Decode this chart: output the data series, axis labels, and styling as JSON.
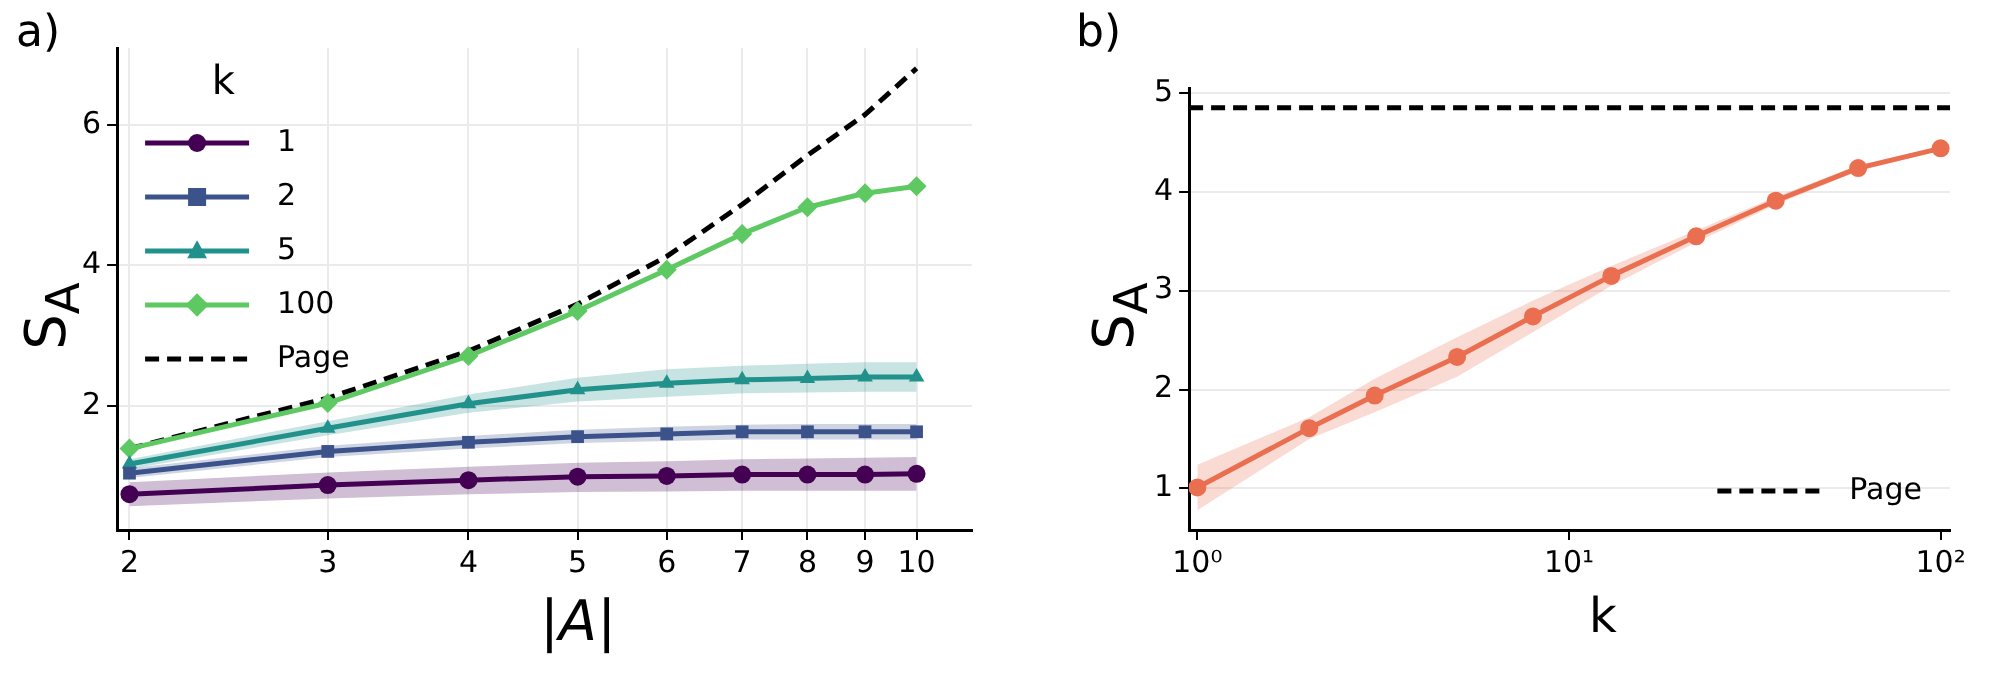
{
  "chart_data": [
    {
      "type": "line",
      "title": "a)",
      "xlabel": "|A|",
      "ylabel": "S$_{A}$",
      "legend_title": "k",
      "legend": "top left",
      "log": "x",
      "grid": true,
      "xlim": [
        1.95,
        11.2
      ],
      "xticks": [
        2,
        3,
        4,
        5,
        6,
        7,
        8,
        9,
        10
      ],
      "ylim": [
        0.23,
        7.1
      ],
      "yticks": [
        2,
        4,
        6
      ],
      "series": [
        {
          "name": "1",
          "color": "#440154",
          "marker": "circle",
          "x": [
            2,
            3,
            4,
            5,
            6,
            7,
            8,
            9,
            10
          ],
          "values": [
            0.74,
            0.87,
            0.94,
            0.99,
            1.0,
            1.02,
            1.02,
            1.02,
            1.03
          ],
          "lower": [
            0.57,
            0.68,
            0.74,
            0.77,
            0.78,
            0.79,
            0.79,
            0.79,
            0.79
          ],
          "upper": [
            0.91,
            1.05,
            1.13,
            1.19,
            1.21,
            1.24,
            1.25,
            1.26,
            1.27
          ]
        },
        {
          "name": "2",
          "color": "#3b528b",
          "marker": "square",
          "x": [
            2,
            3,
            4,
            5,
            6,
            7,
            8,
            9,
            10
          ],
          "values": [
            1.04,
            1.35,
            1.48,
            1.56,
            1.6,
            1.63,
            1.63,
            1.63,
            1.63
          ],
          "lower": [
            0.97,
            1.27,
            1.39,
            1.47,
            1.5,
            1.52,
            1.52,
            1.52,
            1.52
          ],
          "upper": [
            1.11,
            1.43,
            1.57,
            1.66,
            1.7,
            1.73,
            1.74,
            1.74,
            1.74
          ]
        },
        {
          "name": "5",
          "color": "#21918c",
          "marker": "triangle",
          "x": [
            2,
            3,
            4,
            5,
            6,
            7,
            8,
            9,
            10
          ],
          "values": [
            1.17,
            1.68,
            2.03,
            2.23,
            2.32,
            2.37,
            2.39,
            2.41,
            2.41
          ],
          "lower": [
            1.1,
            1.58,
            1.9,
            2.06,
            2.13,
            2.18,
            2.19,
            2.2,
            2.2
          ],
          "upper": [
            1.24,
            1.78,
            2.16,
            2.4,
            2.52,
            2.57,
            2.6,
            2.62,
            2.62
          ]
        },
        {
          "name": "100",
          "color": "#5ec962",
          "marker": "diamond",
          "x": [
            2,
            3,
            4,
            5,
            6,
            7,
            8,
            9,
            10
          ],
          "values": [
            1.39,
            2.04,
            2.71,
            3.35,
            3.94,
            4.45,
            4.83,
            5.03,
            5.13
          ]
        },
        {
          "name": "Page",
          "color": "#000000",
          "marker": "none",
          "line_style": "dashed",
          "x": [
            2,
            3,
            4,
            5,
            6,
            7,
            8,
            9,
            10
          ],
          "values": [
            1.39,
            2.11,
            2.78,
            3.45,
            4.13,
            4.87,
            5.57,
            6.15,
            6.81
          ]
        }
      ]
    },
    {
      "type": "line",
      "title": "b)",
      "xlabel": "k",
      "ylabel": "S$_{A}$",
      "legend": "bottom right",
      "log": "x",
      "grid": "y",
      "xlim": [
        0.95,
        106
      ],
      "xticks": [
        {
          "value": 1,
          "label": "10⁰"
        },
        {
          "value": 10,
          "label": "10¹"
        },
        {
          "value": 100,
          "label": "10²"
        }
      ],
      "ylim": [
        0.58,
        5.05
      ],
      "yticks": [
        1,
        2,
        3,
        4,
        5
      ],
      "series": [
        {
          "color": "#ea6f50",
          "marker": "circle",
          "x": [
            1,
            2,
            3,
            5,
            8,
            13,
            22,
            36,
            60,
            100
          ],
          "values": [
            1.01,
            1.61,
            1.94,
            2.33,
            2.74,
            3.15,
            3.55,
            3.91,
            4.24,
            4.44
          ],
          "lower": [
            0.78,
            1.5,
            1.77,
            2.13,
            2.58,
            3.05,
            3.49,
            3.87,
            4.21,
            4.42
          ],
          "upper": [
            1.24,
            1.72,
            2.11,
            2.53,
            2.9,
            3.25,
            3.61,
            3.95,
            4.27,
            4.46
          ]
        }
      ],
      "ref_lines": [
        {
          "axis": "y",
          "value": 4.85,
          "label": "Page",
          "color": "#000000",
          "line_style": "dashed"
        }
      ]
    }
  ]
}
